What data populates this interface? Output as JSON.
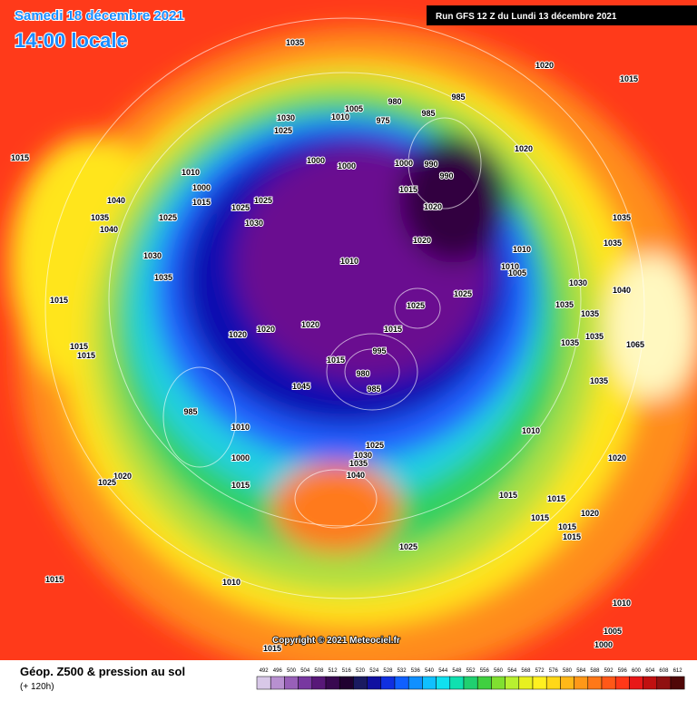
{
  "header": {
    "date": "Samedi 18 décembre 2021",
    "time": "14:00 locale",
    "run": "Run GFS 12 Z du Lundi 13 décembre 2021"
  },
  "isobar_labels": [
    "1035",
    "1020",
    "1015",
    "1015",
    "980",
    "985",
    "1030",
    "1010",
    "1005",
    "975",
    "985",
    "1025",
    "1000",
    "1000",
    "1000",
    "990",
    "990",
    "1020",
    "1015",
    "1020",
    "1010",
    "1000",
    "1040",
    "1015",
    "1025",
    "1025",
    "1025",
    "1035",
    "1040",
    "1030",
    "1035",
    "1020",
    "1035",
    "1010",
    "1010",
    "1030",
    "1010",
    "1005",
    "1035",
    "1030",
    "1040",
    "1025",
    "1015",
    "1025",
    "1035",
    "1035",
    "1020",
    "1020",
    "1020",
    "1015",
    "1035",
    "1035",
    "1015",
    "1015",
    "1065",
    "1015",
    "995",
    "980",
    "985",
    "1045",
    "1035",
    "985",
    "1010",
    "1010",
    "1025",
    "1030",
    "1000",
    "1035",
    "1040",
    "1020",
    "1020",
    "1025",
    "1015",
    "1015",
    "1015",
    "1020",
    "1015",
    "1015",
    "1015",
    "1025",
    "1015",
    "1010",
    "1010",
    "1005",
    "1000",
    "1015"
  ],
  "copyright": "Copyright © 2021 Meteociel.fr",
  "legend": {
    "title": "Géop. Z500 & pression au sol",
    "subtitle": "(+ 120h)",
    "scale": [
      492,
      496,
      500,
      504,
      508,
      512,
      516,
      520,
      524,
      528,
      532,
      536,
      540,
      544,
      548,
      552,
      556,
      560,
      564,
      568,
      572,
      576,
      580,
      584,
      588,
      592,
      596,
      600,
      604,
      608,
      612
    ],
    "colors": [
      "#d8c8e8",
      "#b890d0",
      "#9860b8",
      "#7838a0",
      "#581878",
      "#380850",
      "#200030",
      "#1a1a60",
      "#1010a0",
      "#1030e0",
      "#1060ff",
      "#1090ff",
      "#10c0ff",
      "#10e0f0",
      "#10e0b0",
      "#20d070",
      "#40d040",
      "#80e030",
      "#b8f030",
      "#e8f020",
      "#fff020",
      "#ffd818",
      "#ffb818",
      "#ff9818",
      "#ff7818",
      "#ff5818",
      "#ff3818",
      "#e81818",
      "#c01010",
      "#901010",
      "#500808"
    ]
  }
}
